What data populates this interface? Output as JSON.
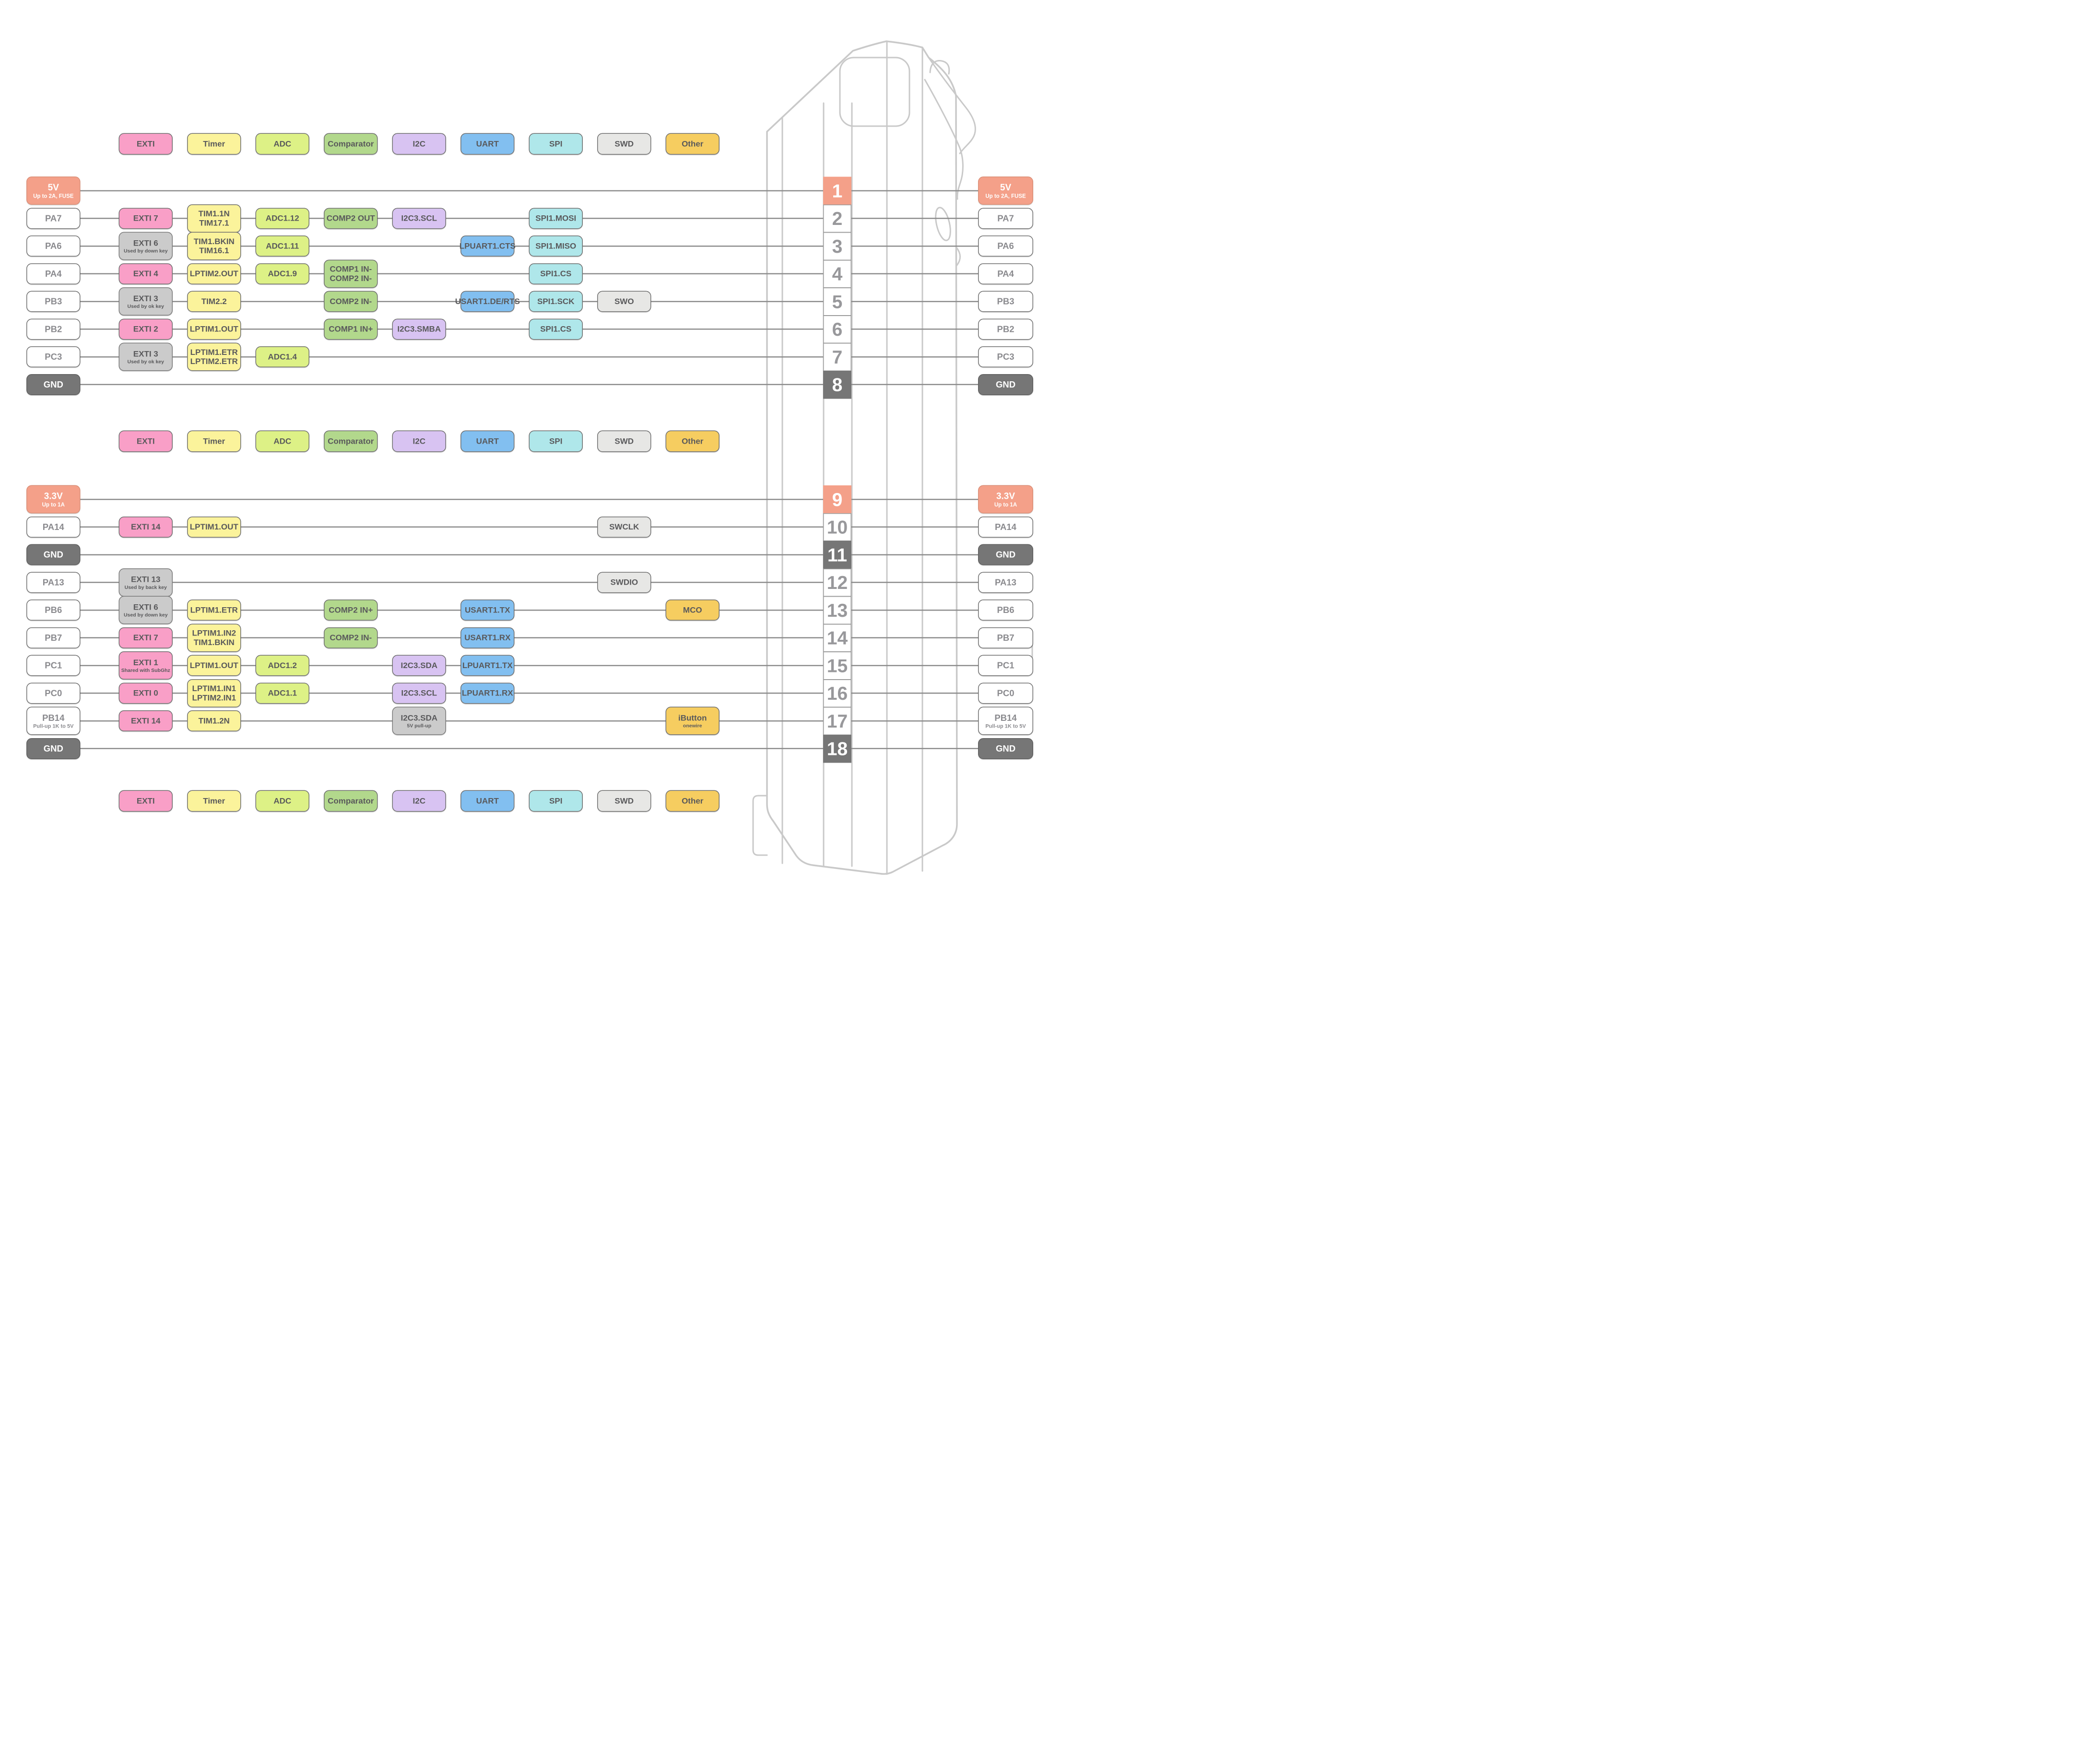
{
  "colors": {
    "exti": "#F99FC7",
    "timer": "#FBF39B",
    "adc": "#DDF186",
    "comparator": "#B2D88C",
    "i2c": "#D8C3F2",
    "uart": "#82BFF0",
    "spi": "#AFE7EA",
    "swd": "#E7E7E5",
    "other": "#F6CD60",
    "power": "#F4A089",
    "gnd": "#767676",
    "disabled": "#CBCBCB",
    "wire": "#8C8C8C",
    "device_outline": "#C9C9C9"
  },
  "legend": {
    "items": [
      {
        "key": "exti",
        "label": "EXTI"
      },
      {
        "key": "timer",
        "label": "Timer"
      },
      {
        "key": "adc",
        "label": "ADC"
      },
      {
        "key": "comparator",
        "label": "Comparator"
      },
      {
        "key": "i2c",
        "label": "I2C"
      },
      {
        "key": "uart",
        "label": "UART"
      },
      {
        "key": "spi",
        "label": "SPI"
      },
      {
        "key": "swd",
        "label": "SWD"
      },
      {
        "key": "other",
        "label": "Other"
      }
    ]
  },
  "sections": [
    {
      "rows": [
        {
          "pin": "1",
          "type": "power",
          "label": "5V",
          "sub": "Up to 2A, FUSE",
          "features": []
        },
        {
          "pin": "2",
          "type": "io",
          "label": "PA7",
          "features": [
            {
              "type": "exti",
              "color": "exti",
              "label": "EXTI 7"
            },
            {
              "type": "timer",
              "color": "timer",
              "label": "TIM1.1N\nTIM17.1"
            },
            {
              "type": "adc",
              "color": "adc",
              "label": "ADC1.12"
            },
            {
              "type": "comparator",
              "color": "comparator",
              "label": "COMP2 OUT"
            },
            {
              "type": "i2c",
              "color": "i2c",
              "label": "I2C3.SCL"
            },
            {
              "type": "spi",
              "color": "spi",
              "label": "SPI1.MOSI"
            }
          ]
        },
        {
          "pin": "3",
          "type": "io",
          "label": "PA6",
          "features": [
            {
              "type": "exti",
              "color": "disabled",
              "label": "EXTI 6",
              "sub": "Used by down key"
            },
            {
              "type": "timer",
              "color": "timer",
              "label": "TIM1.BKIN\nTIM16.1"
            },
            {
              "type": "adc",
              "color": "adc",
              "label": "ADC1.11"
            },
            {
              "type": "uart",
              "color": "uart",
              "label": "LPUART1.CTS"
            },
            {
              "type": "spi",
              "color": "spi",
              "label": "SPI1.MISO"
            }
          ]
        },
        {
          "pin": "4",
          "type": "io",
          "label": "PA4",
          "features": [
            {
              "type": "exti",
              "color": "exti",
              "label": "EXTI 4"
            },
            {
              "type": "timer",
              "color": "timer",
              "label": "LPTIM2.OUT"
            },
            {
              "type": "adc",
              "color": "adc",
              "label": "ADC1.9"
            },
            {
              "type": "comparator",
              "color": "comparator",
              "label": "COMP1 IN-\nCOMP2 IN-"
            },
            {
              "type": "spi",
              "color": "spi",
              "label": "SPI1.CS"
            }
          ]
        },
        {
          "pin": "5",
          "type": "io",
          "label": "PB3",
          "features": [
            {
              "type": "exti",
              "color": "disabled",
              "label": "EXTI 3",
              "sub": "Used by ok key"
            },
            {
              "type": "timer",
              "color": "timer",
              "label": "TIM2.2"
            },
            {
              "type": "comparator",
              "color": "comparator",
              "label": "COMP2 IN-"
            },
            {
              "type": "uart",
              "color": "uart",
              "label": "USART1.DE/RTS"
            },
            {
              "type": "spi",
              "color": "spi",
              "label": "SPI1.SCK"
            },
            {
              "type": "swd",
              "color": "swd",
              "label": "SWO"
            }
          ]
        },
        {
          "pin": "6",
          "type": "io",
          "label": "PB2",
          "features": [
            {
              "type": "exti",
              "color": "exti",
              "label": "EXTI 2"
            },
            {
              "type": "timer",
              "color": "timer",
              "label": "LPTIM1.OUT"
            },
            {
              "type": "comparator",
              "color": "comparator",
              "label": "COMP1 IN+"
            },
            {
              "type": "i2c",
              "color": "i2c",
              "label": "I2C3.SMBA"
            },
            {
              "type": "spi",
              "color": "spi",
              "label": "SPI1.CS"
            }
          ]
        },
        {
          "pin": "7",
          "type": "io",
          "label": "PC3",
          "features": [
            {
              "type": "exti",
              "color": "disabled",
              "label": "EXTI 3",
              "sub": "Used by ok key"
            },
            {
              "type": "timer",
              "color": "timer",
              "label": "LPTIM1.ETR\nLPTIM2.ETR"
            },
            {
              "type": "adc",
              "color": "adc",
              "label": "ADC1.4"
            }
          ]
        },
        {
          "pin": "8",
          "type": "gnd",
          "label": "GND",
          "features": []
        }
      ]
    },
    {
      "rows": [
        {
          "pin": "9",
          "type": "power",
          "label": "3.3V",
          "sub": "Up to 1A",
          "features": []
        },
        {
          "pin": "10",
          "type": "io",
          "label": "PA14",
          "features": [
            {
              "type": "exti",
              "color": "exti",
              "label": "EXTI 14"
            },
            {
              "type": "timer",
              "color": "timer",
              "label": "LPTIM1.OUT"
            },
            {
              "type": "swd",
              "color": "swd",
              "label": "SWCLK"
            }
          ]
        },
        {
          "pin": "11",
          "type": "gnd",
          "label": "GND",
          "features": []
        },
        {
          "pin": "12",
          "type": "io",
          "label": "PA13",
          "features": [
            {
              "type": "exti",
              "color": "disabled",
              "label": "EXTI 13",
              "sub": "Used by back key"
            },
            {
              "type": "swd",
              "color": "swd",
              "label": "SWDIO"
            }
          ]
        },
        {
          "pin": "13",
          "type": "io",
          "label": "PB6",
          "features": [
            {
              "type": "exti",
              "color": "disabled",
              "label": "EXTI 6",
              "sub": "Used by down key"
            },
            {
              "type": "timer",
              "color": "timer",
              "label": "LPTIM1.ETR"
            },
            {
              "type": "comparator",
              "color": "comparator",
              "label": "COMP2 IN+"
            },
            {
              "type": "uart",
              "color": "uart",
              "label": "USART1.TX"
            },
            {
              "type": "other",
              "color": "other",
              "label": "MCO"
            }
          ]
        },
        {
          "pin": "14",
          "type": "io",
          "label": "PB7",
          "features": [
            {
              "type": "exti",
              "color": "exti",
              "label": "EXTI 7"
            },
            {
              "type": "timer",
              "color": "timer",
              "label": "LPTIM1.IN2\nTIM1.BKIN"
            },
            {
              "type": "comparator",
              "color": "comparator",
              "label": "COMP2 IN-"
            },
            {
              "type": "uart",
              "color": "uart",
              "label": "USART1.RX"
            }
          ]
        },
        {
          "pin": "15",
          "type": "io",
          "label": "PC1",
          "features": [
            {
              "type": "exti",
              "color": "exti",
              "label": "EXTI 1",
              "sub": "Shared with SubGhz"
            },
            {
              "type": "timer",
              "color": "timer",
              "label": "LPTIM1.OUT"
            },
            {
              "type": "adc",
              "color": "adc",
              "label": "ADC1.2"
            },
            {
              "type": "i2c",
              "color": "i2c",
              "label": "I2C3.SDA"
            },
            {
              "type": "uart",
              "color": "uart",
              "label": "LPUART1.TX"
            }
          ]
        },
        {
          "pin": "16",
          "type": "io",
          "label": "PC0",
          "features": [
            {
              "type": "exti",
              "color": "exti",
              "label": "EXTI 0"
            },
            {
              "type": "timer",
              "color": "timer",
              "label": "LPTIM1.IN1\nLPTIM2.IN1"
            },
            {
              "type": "adc",
              "color": "adc",
              "label": "ADC1.1"
            },
            {
              "type": "i2c",
              "color": "i2c",
              "label": "I2C3.SCL"
            },
            {
              "type": "uart",
              "color": "uart",
              "label": "LPUART1.RX"
            }
          ]
        },
        {
          "pin": "17",
          "type": "io",
          "label": "PB14",
          "sub": "Pull-up 1K to 5V",
          "features": [
            {
              "type": "exti",
              "color": "exti",
              "label": "EXTI 14"
            },
            {
              "type": "timer",
              "color": "timer",
              "label": "TIM1.2N"
            },
            {
              "type": "i2c",
              "color": "disabled",
              "label": "I2C3.SDA",
              "sub": "5V pull-up"
            },
            {
              "type": "other",
              "color": "other",
              "label": "iButton",
              "sub": "onewire"
            }
          ]
        },
        {
          "pin": "18",
          "type": "gnd",
          "label": "GND",
          "features": []
        }
      ]
    }
  ]
}
